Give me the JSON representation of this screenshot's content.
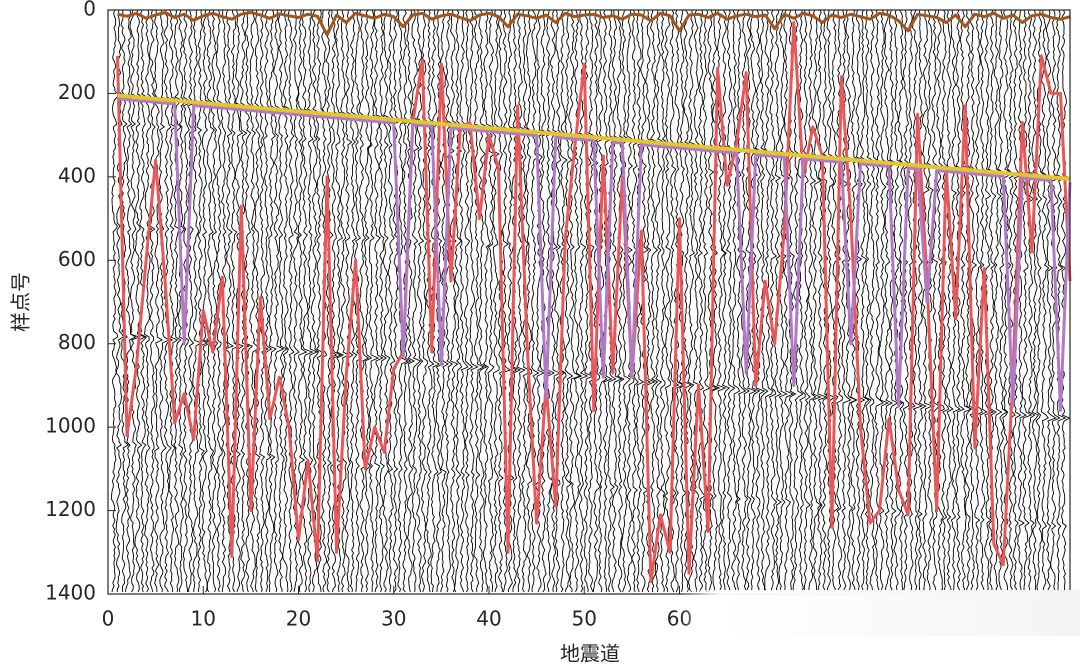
{
  "chart_data": {
    "type": "line",
    "x_label": "地震道",
    "y_label": "样点号",
    "xlim": [
      0,
      101
    ],
    "ylim": [
      0,
      1400
    ],
    "y_reversed": true,
    "xticks": [
      0,
      10,
      20,
      30,
      40,
      50,
      60
    ],
    "yticks": [
      0,
      200,
      400,
      600,
      800,
      1000,
      1200,
      1400
    ],
    "x": [
      1,
      2,
      3,
      4,
      5,
      6,
      7,
      8,
      9,
      10,
      11,
      12,
      13,
      14,
      15,
      16,
      17,
      18,
      19,
      20,
      21,
      22,
      23,
      24,
      25,
      26,
      27,
      28,
      29,
      30,
      31,
      32,
      33,
      34,
      35,
      36,
      37,
      38,
      39,
      40,
      41,
      42,
      43,
      44,
      45,
      46,
      47,
      48,
      49,
      50,
      51,
      52,
      53,
      54,
      55,
      56,
      57,
      58,
      59,
      60,
      61,
      62,
      63,
      64,
      65,
      66,
      67,
      68,
      69,
      70,
      71,
      72,
      73,
      74,
      75,
      76,
      77,
      78,
      79,
      80,
      81,
      82,
      83,
      84,
      85,
      86,
      87,
      88,
      89,
      90,
      91,
      92,
      93,
      94,
      95,
      96,
      97,
      98,
      99,
      100,
      101
    ],
    "series": [
      {
        "color": "#e8585a",
        "values": [
          110,
          1020,
          850,
          600,
          360,
          650,
          990,
          920,
          1030,
          720,
          820,
          640,
          1310,
          470,
          1200,
          690,
          980,
          880,
          1000,
          1270,
          1080,
          1320,
          400,
          1300,
          880,
          600,
          1100,
          1000,
          1060,
          860,
          820,
          270,
          120,
          820,
          130,
          650,
          280,
          270,
          500,
          300,
          380,
          1300,
          230,
          800,
          1230,
          900,
          1190,
          550,
          330,
          130,
          960,
          350,
          870,
          400,
          880,
          530,
          1370,
          1210,
          1300,
          500,
          1350,
          900,
          1250,
          140,
          420,
          320,
          150,
          900,
          650,
          800,
          530,
          30,
          400,
          280,
          350,
          1240,
          160,
          500,
          1000,
          1230,
          1200,
          980,
          1150,
          1210,
          250,
          650,
          1200,
          380,
          740,
          230,
          1050,
          620,
          1280,
          1330,
          880,
          270,
          580,
          110,
          200,
          200,
          650
        ]
      },
      {
        "color": "#b07ac4",
        "values": [
          213,
          215,
          217,
          219,
          221,
          223,
          225,
          800,
          229,
          231,
          233,
          235,
          237,
          239,
          241,
          243,
          245,
          247,
          249,
          251,
          253,
          255,
          257,
          259,
          261,
          263,
          265,
          267,
          269,
          271,
          830,
          275,
          277,
          279,
          850,
          283,
          285,
          287,
          289,
          291,
          293,
          295,
          297,
          299,
          301,
          930,
          305,
          307,
          309,
          311,
          313,
          880,
          317,
          319,
          880,
          323,
          325,
          327,
          329,
          331,
          333,
          335,
          337,
          339,
          341,
          343,
          870,
          347,
          349,
          351,
          353,
          900,
          357,
          359,
          361,
          363,
          365,
          800,
          369,
          371,
          373,
          375,
          950,
          379,
          381,
          700,
          385,
          387,
          389,
          391,
          393,
          395,
          397,
          399,
          950,
          403,
          405,
          407,
          409,
          960,
          413
        ]
      },
      {
        "color": "#e2c531",
        "values": [
          205,
          207,
          209,
          211,
          213,
          215,
          217,
          219,
          221,
          223,
          225,
          227,
          229,
          231,
          233,
          235,
          237,
          239,
          241,
          243,
          245,
          247,
          249,
          251,
          253,
          255,
          257,
          259,
          261,
          263,
          265,
          267,
          269,
          271,
          273,
          275,
          277,
          279,
          281,
          283,
          285,
          287,
          289,
          291,
          293,
          295,
          297,
          299,
          301,
          303,
          305,
          307,
          309,
          311,
          313,
          315,
          317,
          319,
          321,
          323,
          325,
          327,
          329,
          331,
          333,
          335,
          337,
          339,
          341,
          343,
          345,
          347,
          349,
          351,
          353,
          355,
          357,
          359,
          361,
          363,
          365,
          367,
          369,
          371,
          373,
          375,
          377,
          379,
          381,
          383,
          385,
          387,
          389,
          391,
          393,
          395,
          397,
          399,
          401,
          403,
          405
        ]
      },
      {
        "color": "#a0561e",
        "values": [
          10,
          15,
          8,
          20,
          12,
          6,
          18,
          10,
          25,
          14,
          8,
          16,
          22,
          10,
          6,
          12,
          20,
          9,
          14,
          18,
          10,
          15,
          60,
          12,
          30,
          8,
          14,
          20,
          10,
          16,
          40,
          12,
          8,
          22,
          14,
          10,
          18,
          26,
          12,
          8,
          16,
          40,
          10,
          14,
          20,
          12,
          30,
          8,
          16,
          12,
          10,
          18,
          14,
          22,
          10,
          12,
          26,
          8,
          14,
          50,
          12,
          10,
          18,
          8,
          22,
          14,
          10,
          16,
          12,
          45,
          10,
          20,
          8,
          14,
          30,
          12,
          18,
          10,
          16,
          22,
          8,
          12,
          26,
          50,
          10,
          14,
          18,
          30,
          12,
          40,
          10,
          16,
          8,
          20,
          12,
          30,
          14,
          10,
          18,
          22,
          16
        ]
      }
    ]
  }
}
